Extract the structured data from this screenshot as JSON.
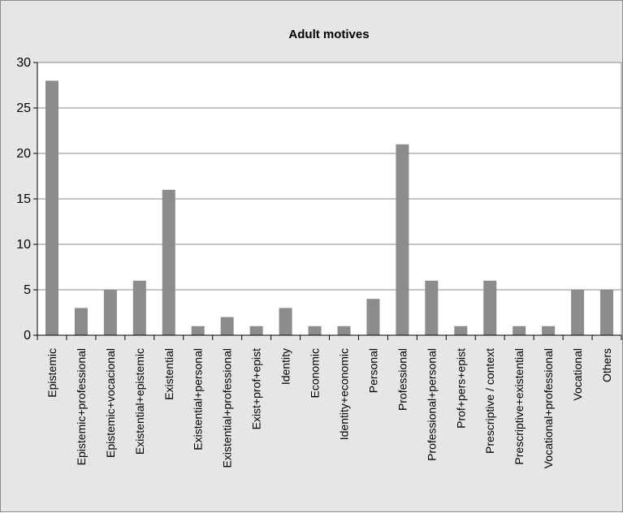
{
  "chart_data": {
    "type": "bar",
    "title": "Adult motives",
    "xlabel": "",
    "ylabel": "",
    "ylim": [
      0,
      30
    ],
    "yticks": [
      0,
      5,
      10,
      15,
      20,
      25,
      30
    ],
    "grid": true,
    "legend": "none",
    "bar_color": "#8c8c8c",
    "categories": [
      "Epistemic",
      "Epistemic+professional",
      "Epistemic+vocacional",
      "Existential+epistemic",
      "Existential",
      "Existential+personal",
      "Existential+professional",
      "Exist+prof+epist",
      "Identity",
      "Economic",
      "Identity+economic",
      "Personal",
      "Professional",
      "Professional+personal",
      "Prof+pers+epist",
      "Prescriptive / context",
      "Prescriptive+existential",
      "Vocational+professional",
      "Vocational",
      "Others"
    ],
    "values": [
      28,
      3,
      5,
      6,
      16,
      1,
      2,
      1,
      3,
      1,
      1,
      4,
      21,
      6,
      1,
      6,
      1,
      1,
      5,
      5
    ]
  }
}
